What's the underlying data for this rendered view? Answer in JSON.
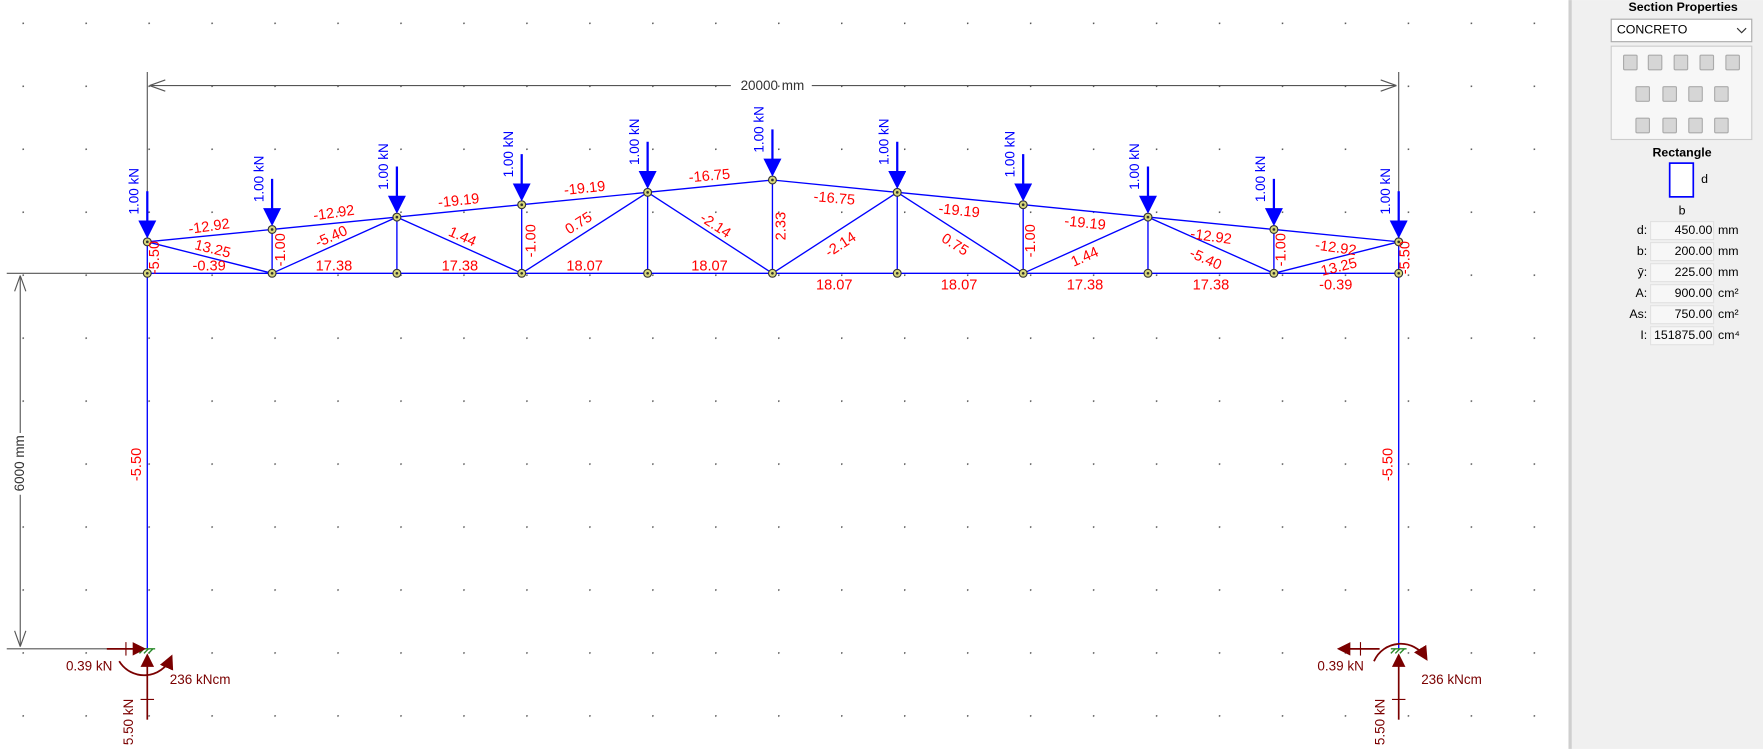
{
  "dimensions": {
    "span": "20000 mm",
    "height": "6000 mm"
  },
  "loads": [
    "1.00 kN",
    "1.00 kN",
    "1.00 kN",
    "1.00 kN",
    "1.00 kN",
    "1.00 kN",
    "1.00 kN",
    "1.00 kN",
    "1.00 kN",
    "1.00 kN",
    "1.00 kN"
  ],
  "member_forces": [
    "-12.92",
    "-12.92",
    "-19.19",
    "-19.19",
    "-16.75",
    "-16.75",
    "-19.19",
    "-19.19",
    "-12.92",
    "-12.92",
    "-0.39",
    "17.38",
    "17.38",
    "18.07",
    "18.07",
    "18.07",
    "18.07",
    "17.38",
    "17.38",
    "-0.39",
    "13.25",
    "-5.40",
    "1.44",
    "0.75",
    "-2.14",
    "-2.14",
    "0.75",
    "1.44",
    "-5.40",
    "13.25",
    "-5.50",
    "-1.00",
    "-1.00",
    "2.33",
    "-1.00",
    "-1.00",
    "-5.50",
    "-5.50",
    "-5.50"
  ],
  "reactions": {
    "left": {
      "horizontal": "0.39 kN",
      "moment": "236 kNcm",
      "vertical": "5.50 kN"
    },
    "right": {
      "horizontal": "0.39 kN",
      "moment": "236 kNcm",
      "vertical": "5.50 kN"
    }
  },
  "panel": {
    "title": "Section Properties",
    "material": "CONCRETO",
    "shape": "Rectangle",
    "dim_d": "d",
    "dim_b": "b",
    "properties": [
      {
        "label": "d:",
        "value": "450.00",
        "unit": "mm"
      },
      {
        "label": "b:",
        "value": "200.00",
        "unit": "mm"
      },
      {
        "label": "ȳ:",
        "value": "225.00",
        "unit": "mm"
      },
      {
        "label": "A:",
        "value": "900.00",
        "unit": "cm²"
      },
      {
        "label": "As:",
        "value": "750.00",
        "unit": "cm²"
      },
      {
        "label": "I:",
        "value": "151875.00",
        "unit": "cm⁴"
      }
    ]
  }
}
